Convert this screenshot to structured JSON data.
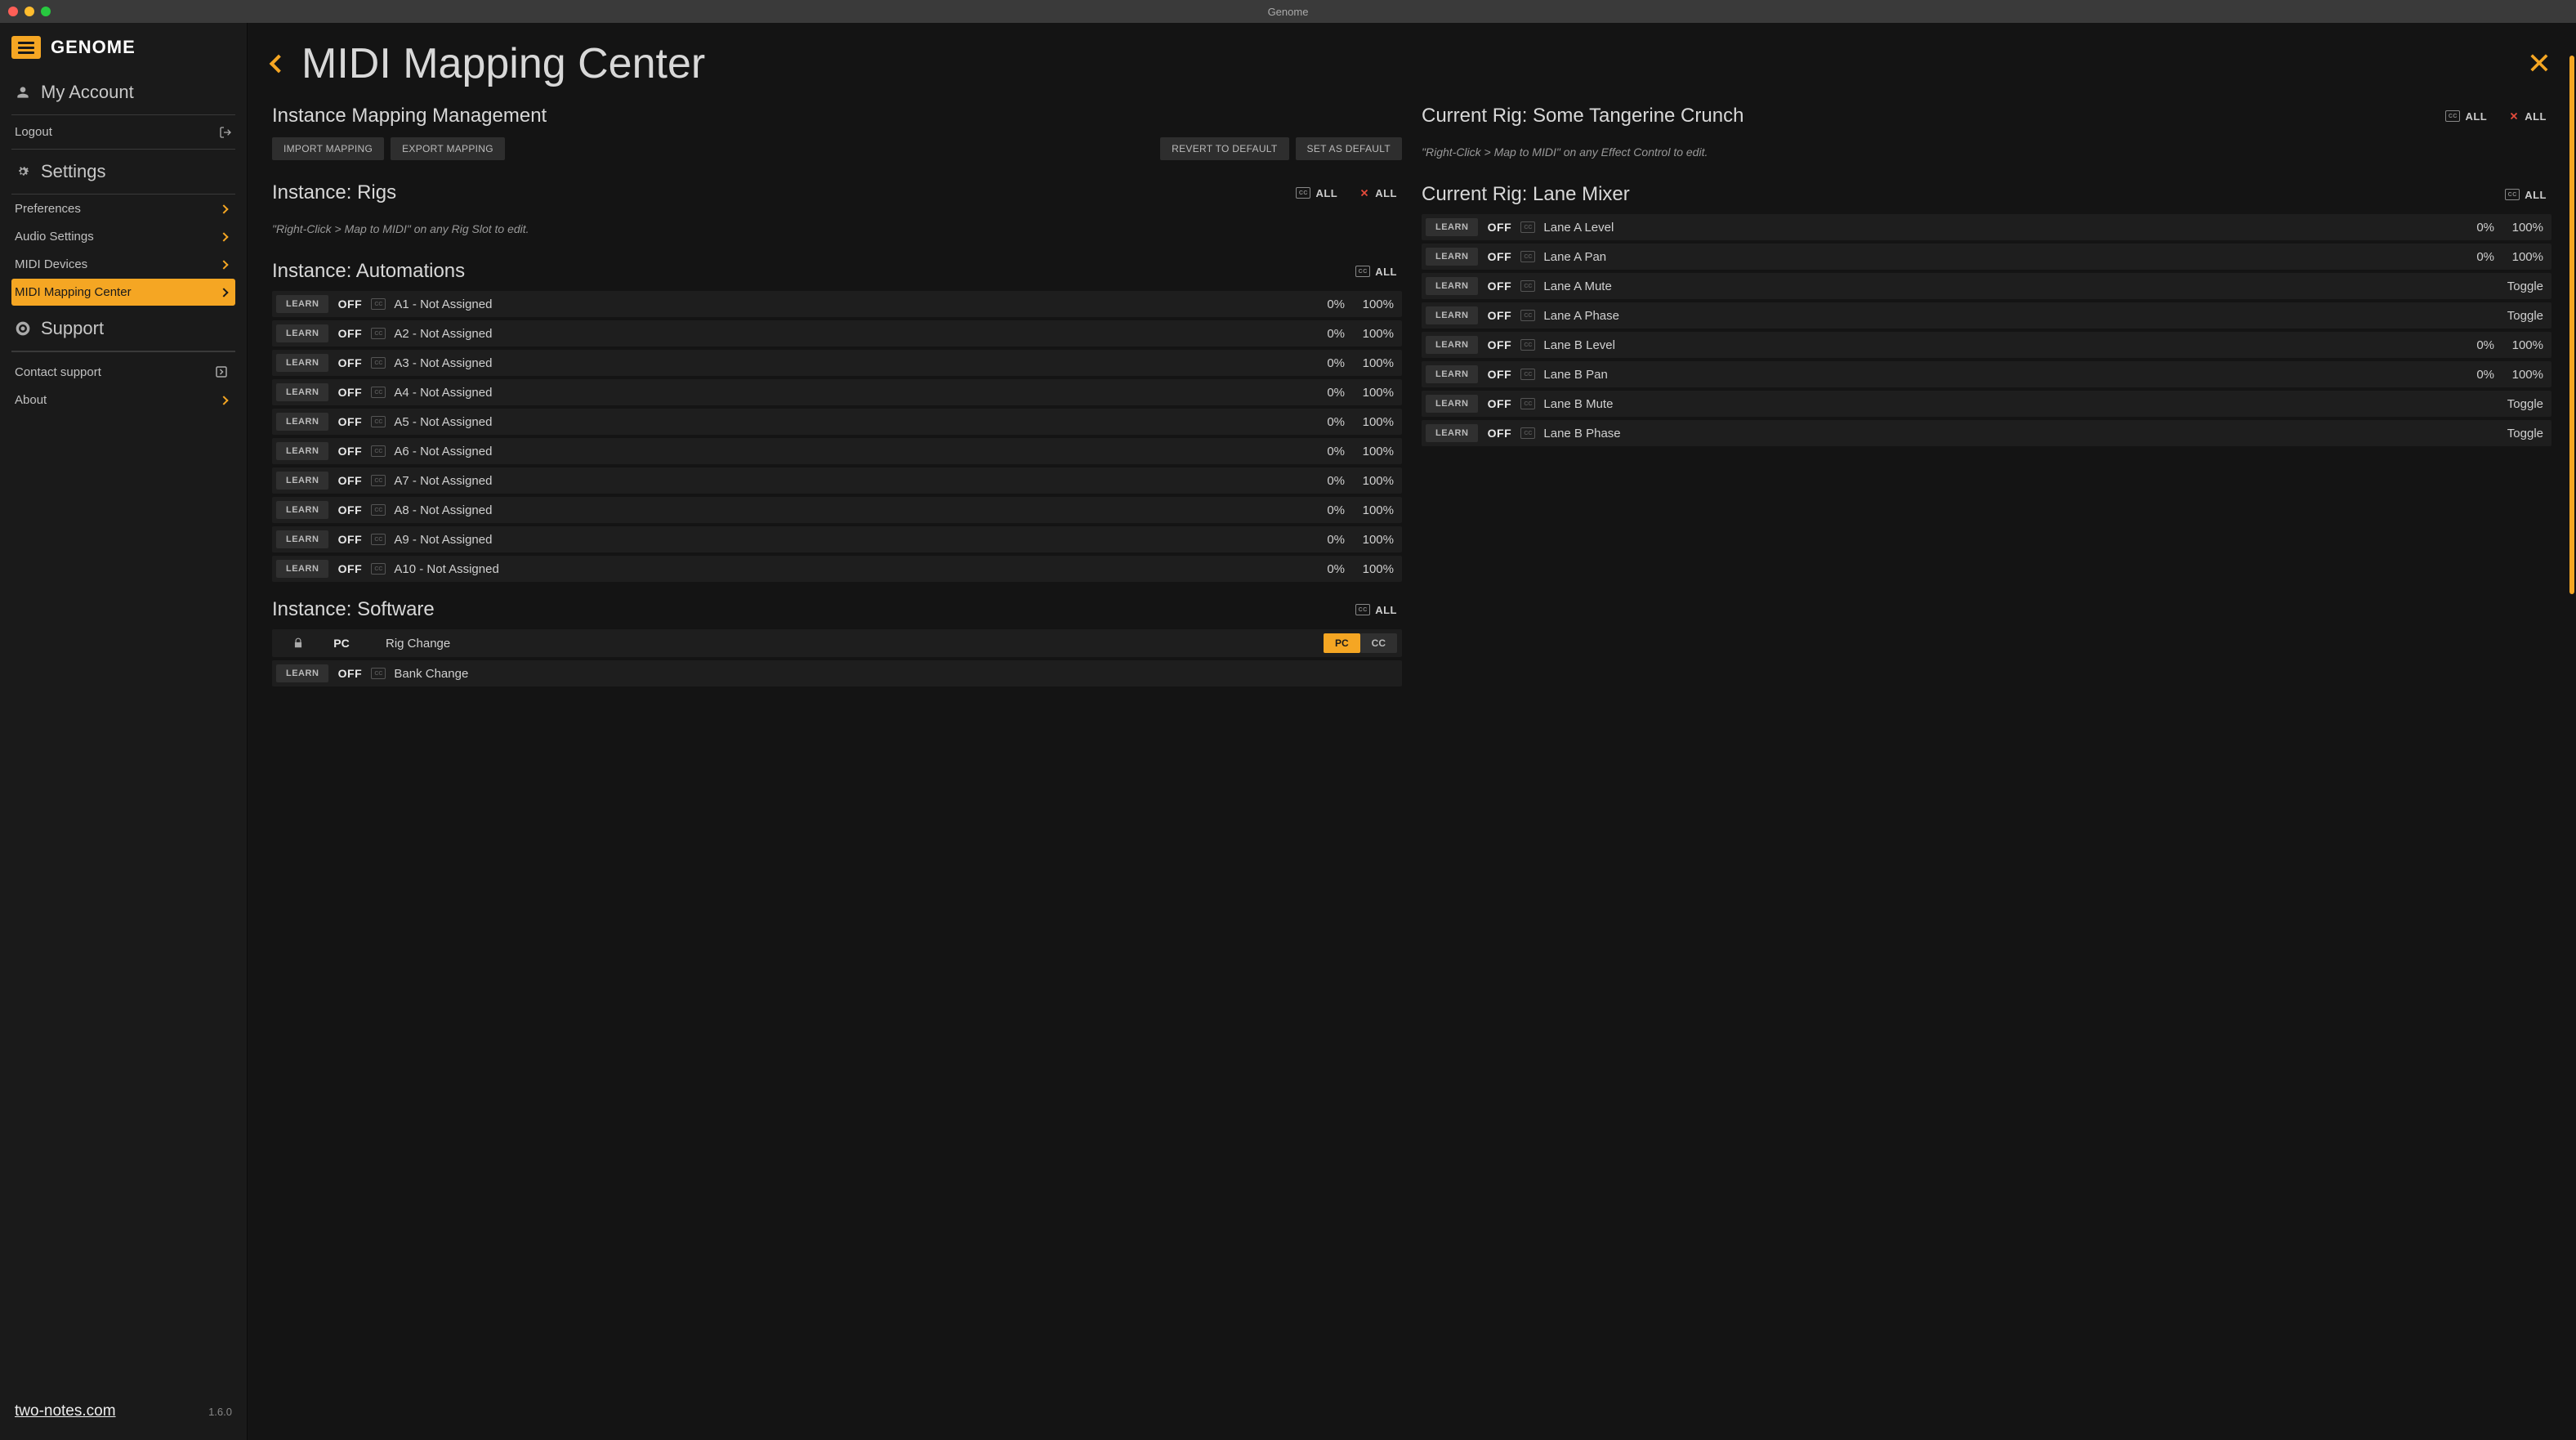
{
  "window": {
    "title": "Genome"
  },
  "logo": "GENOME",
  "sidebar": {
    "myAccount": "My Account",
    "logout": "Logout",
    "settings": "Settings",
    "items": [
      {
        "label": "Preferences"
      },
      {
        "label": "Audio Settings"
      },
      {
        "label": "MIDI Devices"
      },
      {
        "label": "MIDI Mapping Center",
        "active": true
      }
    ],
    "support": "Support",
    "supportItems": [
      {
        "label": "Contact support",
        "iconAfter": true
      },
      {
        "label": "About",
        "chevron": true
      }
    ],
    "url": "two-notes.com",
    "version": "1.6.0"
  },
  "page": {
    "title": "MIDI Mapping Center",
    "allLabel": "ALL"
  },
  "left": {
    "mgmtTitle": "Instance Mapping Management",
    "buttons": {
      "import": "IMPORT MAPPING",
      "export": "EXPORT MAPPING",
      "revert": "REVERT TO DEFAULT",
      "setDefault": "SET AS DEFAULT"
    },
    "rigs": {
      "title": "Instance: Rigs",
      "hint": "\"Right-Click > Map to MIDI\" on any Rig Slot to edit."
    },
    "autom": {
      "title": "Instance: Automations",
      "learn": "LEARN",
      "off": "OFF",
      "rows": [
        {
          "name": "A1 - Not Assigned",
          "min": "0%",
          "max": "100%"
        },
        {
          "name": "A2 - Not Assigned",
          "min": "0%",
          "max": "100%"
        },
        {
          "name": "A3 - Not Assigned",
          "min": "0%",
          "max": "100%"
        },
        {
          "name": "A4 - Not Assigned",
          "min": "0%",
          "max": "100%"
        },
        {
          "name": "A5 - Not Assigned",
          "min": "0%",
          "max": "100%"
        },
        {
          "name": "A6 - Not Assigned",
          "min": "0%",
          "max": "100%"
        },
        {
          "name": "A7 - Not Assigned",
          "min": "0%",
          "max": "100%"
        },
        {
          "name": "A8 - Not Assigned",
          "min": "0%",
          "max": "100%"
        },
        {
          "name": "A9 - Not Assigned",
          "min": "0%",
          "max": "100%"
        },
        {
          "name": "A10 - Not Assigned",
          "min": "0%",
          "max": "100%"
        }
      ]
    },
    "software": {
      "title": "Instance: Software",
      "pc": "PC",
      "cc": "CC",
      "rows": [
        {
          "name": "Rig Change",
          "locked": true,
          "pcActive": true
        },
        {
          "name": "Bank Change"
        }
      ]
    }
  },
  "right": {
    "rigTitle": "Current Rig: Some Tangerine Crunch",
    "hint": "\"Right-Click > Map to MIDI\" on any Effect Control to edit.",
    "mixerTitle": "Current Rig: Lane Mixer",
    "learn": "LEARN",
    "off": "OFF",
    "rows": [
      {
        "name": "Lane A Level",
        "min": "0%",
        "max": "100%"
      },
      {
        "name": "Lane A Pan",
        "min": "0%",
        "max": "100%"
      },
      {
        "name": "Lane A Mute",
        "toggle": "Toggle"
      },
      {
        "name": "Lane A Phase",
        "toggle": "Toggle"
      },
      {
        "name": "Lane B Level",
        "min": "0%",
        "max": "100%"
      },
      {
        "name": "Lane B Pan",
        "min": "0%",
        "max": "100%"
      },
      {
        "name": "Lane B Mute",
        "toggle": "Toggle"
      },
      {
        "name": "Lane B Phase",
        "toggle": "Toggle"
      }
    ]
  }
}
